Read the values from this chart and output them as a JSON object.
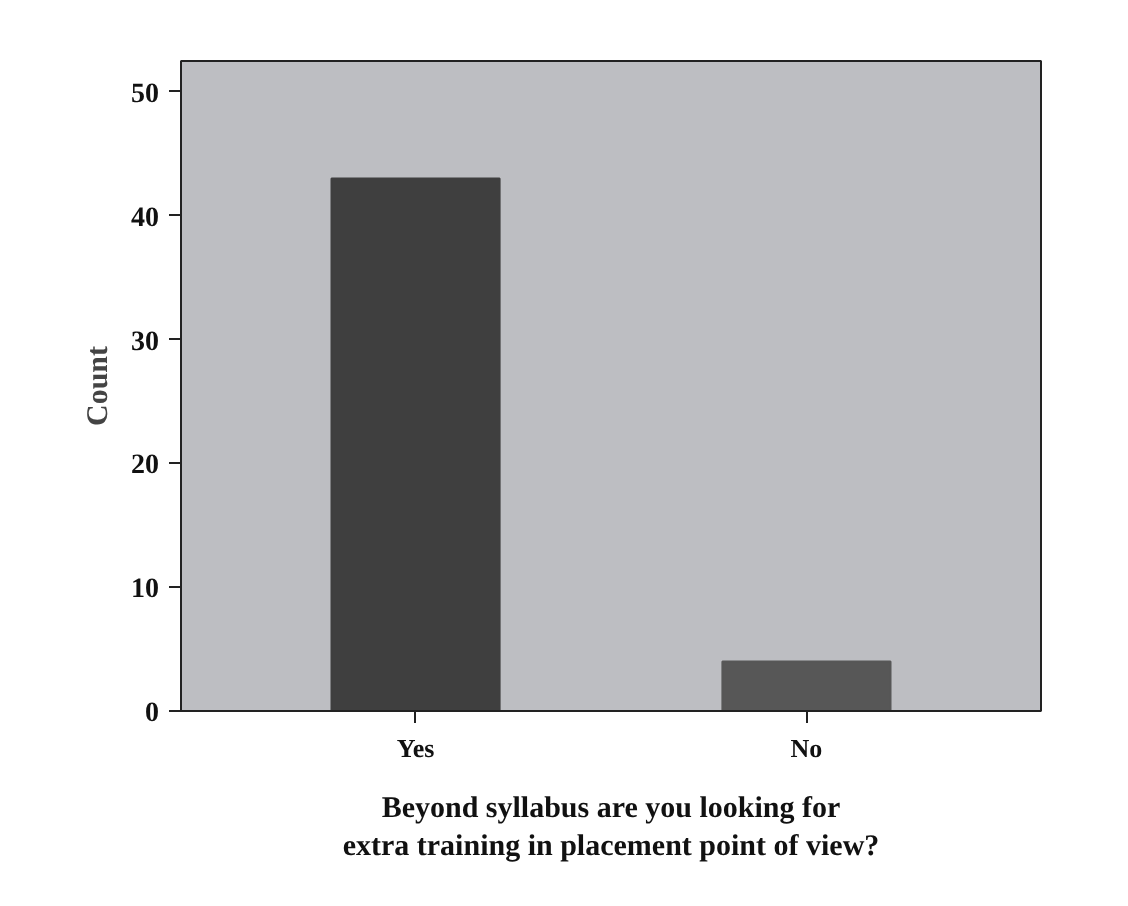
{
  "chart_data": {
    "type": "bar",
    "categories": [
      "Yes",
      "No"
    ],
    "values": [
      43,
      4
    ],
    "colors": [
      "#3f3f3f",
      "#575757"
    ],
    "ylim": [
      0,
      52.5
    ],
    "yticks": [
      0,
      10,
      20,
      30,
      40,
      50
    ],
    "ylabel": "Count",
    "xlabel": "Beyond syllabus are you looking for\nextra training in placement point of view?",
    "grid": false
  }
}
